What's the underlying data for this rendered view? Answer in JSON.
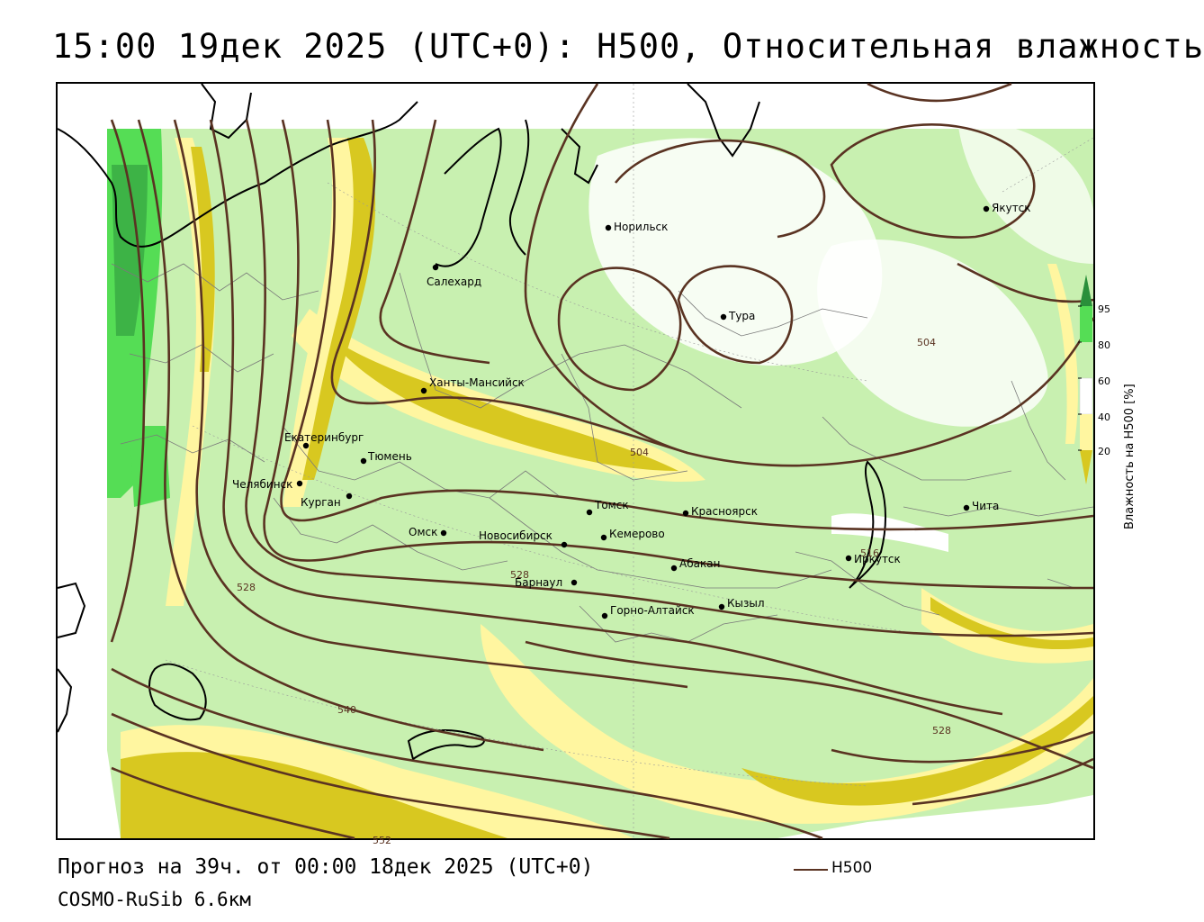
{
  "title": "15:00 19дек 2025 (UTC+0): H500, Относительная влажность",
  "footer": {
    "forecast": "Прогноз на 39ч. от 00:00 18дек 2025 (UTC+0)",
    "model": "COSMO-RuSib 6.6км"
  },
  "legend": {
    "label": "Влажность на H500 [%]",
    "ticks": [
      "95",
      "80",
      "60",
      "40",
      "20"
    ],
    "colors": {
      "c95": "#2a8f3a",
      "c80": "#55dd55",
      "c60": "#c8f0b0",
      "c40": "#ffffff",
      "c20": "#fff6a0",
      "c0": "#d8c820"
    },
    "h500_key": "H500"
  },
  "isoline_labels": [
    "504",
    "504",
    "516",
    "528",
    "528",
    "528",
    "540",
    "552"
  ],
  "isoline_color": "#5a3322",
  "cities": [
    "Норильск",
    "Якутск",
    "Салехард",
    "Тура",
    "Ханты-Мансийск",
    "Екатеринбург",
    "Тюмень",
    "Челябинск",
    "Курган",
    "Омск",
    "Новосибирск",
    "Томск",
    "Кемерово",
    "Красноярск",
    "Абакан",
    "Барнаул",
    "Горно-Алтайск",
    "Кызыл",
    "Иркутск",
    "Чита"
  ]
}
